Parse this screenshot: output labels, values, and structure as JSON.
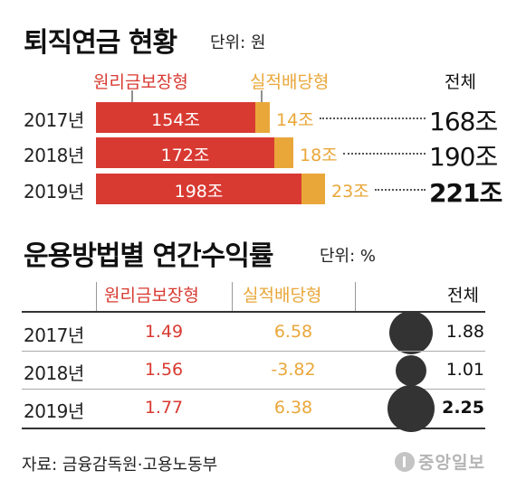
{
  "section1": {
    "title": "퇴직연금 현황",
    "unit": "단위: 원",
    "legend_guaranteed": "원리금보장형",
    "legend_performance": "실적배당형",
    "total_header": "전체"
  },
  "section2": {
    "title": "운용방법별 연간수익률",
    "unit": "단위: %",
    "col_guaranteed": "원리금보장형",
    "col_performance": "실적배당형",
    "col_total": "전체"
  },
  "source": "자료: 금융감독원·고용노동부",
  "logo": "중앙일보",
  "colors": {
    "red": "#d83a32",
    "gold": "#e9a73a",
    "dark": "#333333"
  },
  "chart_data": [
    {
      "type": "bar",
      "stacked": true,
      "orientation": "horizontal",
      "title": "퇴직연금 현황",
      "unit": "단위: 원",
      "categories": [
        "2017년",
        "2018년",
        "2019년"
      ],
      "series": [
        {
          "name": "원리금보장형",
          "values": [
            154,
            172,
            198
          ],
          "labels": [
            "154조",
            "172조",
            "198조"
          ]
        },
        {
          "name": "실적배당형",
          "values": [
            14,
            18,
            23
          ],
          "labels": [
            "14조",
            "18조",
            "23조"
          ]
        }
      ],
      "totals": [
        168,
        190,
        221
      ],
      "total_labels": [
        "168조",
        "190조",
        "221조"
      ],
      "legend": "top"
    },
    {
      "type": "table",
      "title": "운용방법별 연간수익률",
      "unit": "단위: %",
      "columns": [
        "원리금보장형",
        "실적배당형",
        "전체"
      ],
      "rows": [
        {
          "year": "2017년",
          "guaranteed": "1.49",
          "performance": "6.58",
          "total": "1.88",
          "total_value": 1.88
        },
        {
          "year": "2018년",
          "guaranteed": "1.56",
          "performance": "-3.82",
          "total": "1.01",
          "total_value": 1.01
        },
        {
          "year": "2019년",
          "guaranteed": "1.77",
          "performance": "6.38",
          "total": "2.25",
          "total_value": 2.25
        }
      ]
    }
  ]
}
